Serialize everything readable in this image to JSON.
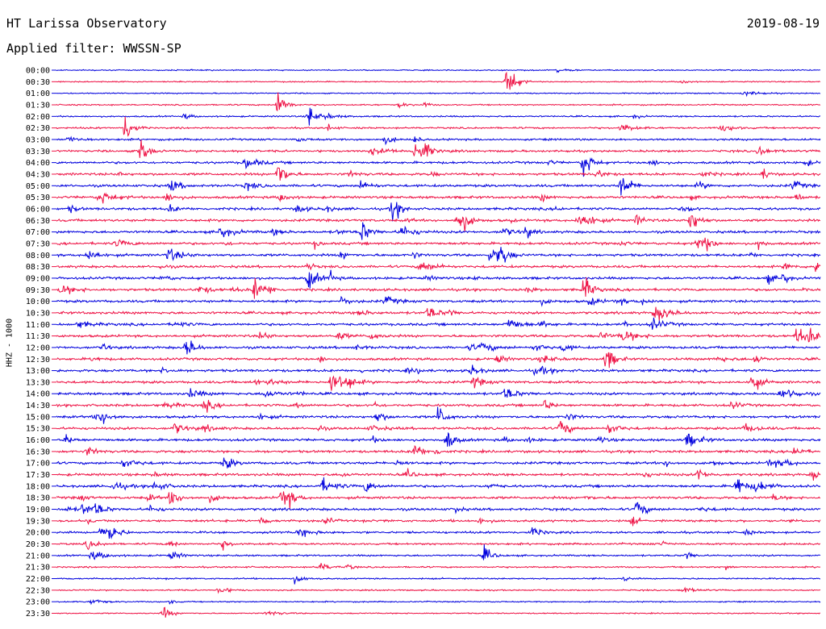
{
  "header": {
    "title": "HT Larissa Observatory",
    "filter": "Applied filter: WWSSN-SP",
    "date": "2019-08-19"
  },
  "chart_data": {
    "type": "line",
    "title": "HT Larissa Observatory",
    "subtitle": "Applied filter: WWSSN-SP",
    "date": "2019-08-19",
    "ylabel": "HHZ - 1000",
    "xlabel": "",
    "colors": [
      "#0000dd",
      "#ee1144"
    ],
    "row_labels": [
      "00:00",
      "00:30",
      "01:00",
      "01:30",
      "02:00",
      "02:30",
      "03:00",
      "03:30",
      "04:00",
      "04:30",
      "05:00",
      "05:30",
      "06:00",
      "06:30",
      "07:00",
      "07:30",
      "08:00",
      "08:30",
      "09:00",
      "09:30",
      "10:00",
      "10:30",
      "11:00",
      "11:30",
      "12:00",
      "12:30",
      "13:00",
      "13:30",
      "14:00",
      "14:30",
      "15:00",
      "15:30",
      "16:00",
      "16:30",
      "17:00",
      "17:30",
      "18:00",
      "18:30",
      "19:00",
      "19:30",
      "20:00",
      "20:30",
      "21:00",
      "21:30",
      "22:00",
      "22:30",
      "23:00",
      "23:30"
    ],
    "noise_level": [
      0.3,
      0.3,
      0.3,
      0.4,
      0.5,
      0.6,
      0.7,
      0.8,
      0.9,
      1.0,
      1.0,
      1.0,
      1.0,
      1.0,
      1.0,
      1.0,
      1.0,
      1.0,
      1.0,
      1.0,
      1.0,
      1.0,
      1.0,
      1.0,
      1.0,
      1.0,
      1.0,
      1.0,
      1.0,
      1.0,
      1.0,
      1.0,
      1.0,
      1.0,
      1.0,
      1.0,
      1.0,
      1.0,
      1.0,
      0.9,
      0.8,
      0.7,
      0.6,
      0.5,
      0.45,
      0.4,
      0.35,
      0.3
    ],
    "events": [
      {
        "row": 1,
        "x": 0.59,
        "amp": 28
      },
      {
        "row": 3,
        "x": 0.29,
        "amp": 20
      },
      {
        "row": 4,
        "x": 0.33,
        "amp": 14
      },
      {
        "row": 5,
        "x": 0.09,
        "amp": 18
      },
      {
        "row": 7,
        "x": 0.47,
        "amp": 22
      },
      {
        "row": 7,
        "x": 0.11,
        "amp": 16
      },
      {
        "row": 8,
        "x": 0.69,
        "amp": 20
      },
      {
        "row": 9,
        "x": 0.29,
        "amp": 18
      },
      {
        "row": 10,
        "x": 0.74,
        "amp": 18
      },
      {
        "row": 12,
        "x": 0.44,
        "amp": 16
      },
      {
        "row": 13,
        "x": 0.53,
        "amp": 14
      },
      {
        "row": 13,
        "x": 0.83,
        "amp": 16
      },
      {
        "row": 14,
        "x": 0.4,
        "amp": 14
      },
      {
        "row": 15,
        "x": 0.84,
        "amp": 14
      },
      {
        "row": 16,
        "x": 0.58,
        "amp": 16
      },
      {
        "row": 18,
        "x": 0.33,
        "amp": 16
      },
      {
        "row": 19,
        "x": 0.69,
        "amp": 18
      },
      {
        "row": 19,
        "x": 0.26,
        "amp": 16
      },
      {
        "row": 23,
        "x": 0.97,
        "amp": 14
      },
      {
        "row": 24,
        "x": 0.17,
        "amp": 14
      },
      {
        "row": 25,
        "x": 0.72,
        "amp": 16
      },
      {
        "row": 27,
        "x": 0.36,
        "amp": 16
      },
      {
        "row": 27,
        "x": 0.91,
        "amp": 14
      },
      {
        "row": 30,
        "x": 0.5,
        "amp": 14
      },
      {
        "row": 31,
        "x": 0.66,
        "amp": 12
      },
      {
        "row": 32,
        "x": 0.51,
        "amp": 14
      },
      {
        "row": 34,
        "x": 0.22,
        "amp": 10
      },
      {
        "row": 36,
        "x": 0.89,
        "amp": 14
      },
      {
        "row": 37,
        "x": 0.3,
        "amp": 14
      },
      {
        "row": 37,
        "x": 0.15,
        "amp": 12
      },
      {
        "row": 38,
        "x": 0.76,
        "amp": 12
      },
      {
        "row": 40,
        "x": 0.07,
        "amp": 10
      },
      {
        "row": 42,
        "x": 0.56,
        "amp": 10
      },
      {
        "row": 47,
        "x": 0.14,
        "amp": 8
      }
    ]
  }
}
